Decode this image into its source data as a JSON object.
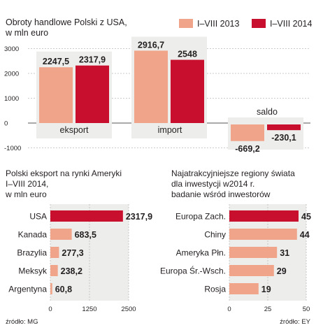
{
  "colors": {
    "light": "#f0a58a",
    "dark": "#c8102e",
    "panel": "#ededeb",
    "text": "#231f20",
    "axis": "#6d6e71"
  },
  "chart_data": [
    {
      "type": "bar",
      "title": "Obroty handlowe Polski z USA,",
      "subtitle": "w mln euro",
      "categories": [
        "eksport",
        "import",
        "saldo"
      ],
      "series": [
        {
          "name": "I–VIII 2013",
          "values": [
            2247.5,
            2916.7,
            -669.2
          ],
          "value_labels": [
            "2247,5",
            "2916,7",
            "-669,2"
          ]
        },
        {
          "name": "I–VIII 2014",
          "values": [
            2317.9,
            2548,
            -230.1
          ],
          "value_labels": [
            "2317,9",
            "2548",
            "-230,1"
          ]
        }
      ],
      "y_ticks": [
        3000,
        2000,
        1000,
        0,
        -1000
      ],
      "y_tick_labels": [
        "3000",
        "2000",
        "1000",
        "0",
        "-1000"
      ],
      "ylim": [
        -1000,
        3000
      ],
      "grid": true,
      "legend": "top-right"
    },
    {
      "type": "bar",
      "orientation": "horizontal",
      "title_lines": [
        "Polski eksport na rynki Ameryki",
        "I–VIII 2014,",
        "w mln euro"
      ],
      "categories": [
        "USA",
        "Kanada",
        "Brazylia",
        "Meksyk",
        "Argentyna"
      ],
      "values": [
        2317.9,
        683.5,
        277.3,
        238.2,
        60.8
      ],
      "value_labels": [
        "2317,9",
        "683,5",
        "277,3",
        "238,2",
        "60,8"
      ],
      "x_ticks": [
        0,
        1250,
        2500
      ],
      "x_tick_labels": [
        "0",
        "1250",
        "2500"
      ],
      "xlim": [
        0,
        2500
      ],
      "source": "źródło: MG"
    },
    {
      "type": "bar",
      "orientation": "horizontal",
      "title_lines": [
        "Najatrakcyjniejsze regiony świata",
        "dla inwestycji w2014 r.",
        "badanie wśród inwestorów"
      ],
      "categories": [
        "Europa Zach.",
        "Chiny",
        "Ameryka Płn.",
        "Europa Śr.-Wsch.",
        "Rosja"
      ],
      "values": [
        45,
        44,
        31,
        29,
        19
      ],
      "value_labels": [
        "45",
        "44",
        "31",
        "29",
        "19"
      ],
      "x_ticks": [
        0,
        25,
        50
      ],
      "x_tick_labels": [
        "0",
        "25",
        "50"
      ],
      "xlim": [
        0,
        50
      ],
      "source": "źródło: EY"
    }
  ]
}
